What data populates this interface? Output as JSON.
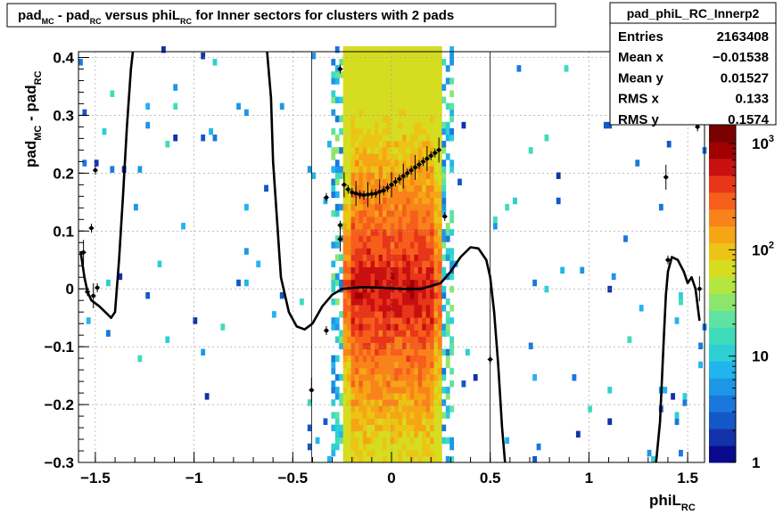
{
  "chart_data": {
    "type": "heatmap",
    "title": {
      "a": "pad",
      "a_sub": "MC",
      "b": " - pad",
      "b_sub": "RC",
      "c": " versus phiL",
      "c_sub": "RC",
      "d": " for Inner sectors for clusters with 2 pads"
    },
    "xlabel": {
      "main": "phiL",
      "sub": "RC"
    },
    "ylabel": {
      "a": "pad",
      "a_sub": "MC",
      "b": " - pad",
      "b_sub": "RC"
    },
    "xlim": [
      -1.5854,
      1.5854
    ],
    "ylim": [
      -0.3,
      0.41
    ],
    "x_ticks": [
      {
        "v": -1.5,
        "label": "−1.5"
      },
      {
        "v": -1,
        "label": "−1"
      },
      {
        "v": -0.5,
        "label": "−0.5"
      },
      {
        "v": 0,
        "label": "0"
      },
      {
        "v": 0.5,
        "label": "0.5"
      },
      {
        "v": 1,
        "label": "1"
      },
      {
        "v": 1.5,
        "label": "1.5"
      }
    ],
    "y_ticks": [
      {
        "v": -0.3,
        "label": "−0.3"
      },
      {
        "v": -0.2,
        "label": "−0.2"
      },
      {
        "v": -0.1,
        "label": "−0.1"
      },
      {
        "v": 0,
        "label": "0"
      },
      {
        "v": 0.1,
        "label": "0.1"
      },
      {
        "v": 0.2,
        "label": "0.2"
      },
      {
        "v": 0.3,
        "label": "0.3"
      },
      {
        "v": 0.4,
        "label": "0.4"
      }
    ],
    "grid": true,
    "stats": {
      "title": "pad_phiL_RC_Innerp2",
      "rows": [
        {
          "label": "Entries",
          "value": "2163408"
        },
        {
          "label": "Mean x",
          "value": "−0.01538"
        },
        {
          "label": "Mean y",
          "value": "0.01527"
        },
        {
          "label": "RMS x",
          "value": "0.133"
        },
        {
          "label": "RMS y",
          "value": "0.1574"
        }
      ]
    },
    "colorbar": {
      "scale": "log",
      "zlim": [
        1,
        1500
      ],
      "colors": [
        "#0a0a8c",
        "#1331a8",
        "#1457c6",
        "#1a78dc",
        "#1e96e6",
        "#22b4ec",
        "#2ecfd4",
        "#3edcbc",
        "#5ee3a0",
        "#8ce66e",
        "#b4e640",
        "#d6dc20",
        "#ecc415",
        "#f6a514",
        "#f9831a",
        "#f65e1c",
        "#e8361a",
        "#c81010",
        "#a00000",
        "#780000"
      ],
      "labels": [
        {
          "v": 1,
          "label": "1"
        },
        {
          "v": 10,
          "label": "10"
        },
        {
          "v": 100,
          "label": "10",
          "sup": "2"
        },
        {
          "v": 1000,
          "label": "10",
          "sup": "3"
        }
      ]
    },
    "series": [
      {
        "kind": "curve",
        "points": [
          [
            -1.575,
            0.065
          ],
          [
            -1.555,
            0.02
          ],
          [
            -1.54,
            -0.005
          ],
          [
            -1.52,
            -0.02
          ],
          [
            -1.5,
            -0.025
          ],
          [
            -1.48,
            -0.03
          ],
          [
            -1.45,
            -0.04
          ],
          [
            -1.42,
            -0.05
          ],
          [
            -1.4,
            -0.04
          ],
          [
            -1.38,
            0.05
          ],
          [
            -1.36,
            0.16
          ],
          [
            -1.34,
            0.28
          ],
          [
            -1.32,
            0.38
          ],
          [
            -1.31,
            0.42
          ],
          [
            -0.63,
            0.42
          ],
          [
            -0.61,
            0.33
          ],
          [
            -0.6,
            0.22
          ],
          [
            -0.58,
            0.12
          ],
          [
            -0.56,
            0.02
          ],
          [
            -0.52,
            -0.04
          ],
          [
            -0.48,
            -0.065
          ],
          [
            -0.44,
            -0.07
          ],
          [
            -0.4,
            -0.06
          ],
          [
            -0.35,
            -0.03
          ],
          [
            -0.3,
            -0.01
          ],
          [
            -0.25,
            0.0
          ],
          [
            -0.15,
            0.003
          ],
          [
            -0.05,
            0.002
          ],
          [
            0.05,
            0.0
          ],
          [
            0.15,
            0.0
          ],
          [
            0.25,
            0.01
          ],
          [
            0.3,
            0.03
          ],
          [
            0.35,
            0.055
          ],
          [
            0.4,
            0.072
          ],
          [
            0.44,
            0.07
          ],
          [
            0.48,
            0.05
          ],
          [
            0.5,
            0.02
          ],
          [
            0.52,
            -0.04
          ],
          [
            0.54,
            -0.13
          ],
          [
            0.56,
            -0.24
          ],
          [
            0.575,
            -0.3
          ],
          [
            1.34,
            -0.3
          ],
          [
            1.36,
            -0.23
          ],
          [
            1.38,
            -0.08
          ],
          [
            1.39,
            -0.01
          ],
          [
            1.4,
            0.03
          ],
          [
            1.42,
            0.055
          ],
          [
            1.45,
            0.05
          ],
          [
            1.48,
            0.03
          ],
          [
            1.5,
            0.01
          ],
          [
            1.52,
            0.02
          ],
          [
            1.54,
            0.0
          ],
          [
            1.56,
            -0.055
          ]
        ]
      },
      {
        "kind": "profile_points",
        "points": [
          [
            -1.56,
            0.063
          ],
          [
            -1.54,
            -0.005
          ],
          [
            -1.52,
            0.105
          ],
          [
            -1.51,
            -0.012
          ],
          [
            -1.5,
            0.205
          ],
          [
            -1.49,
            0.002
          ],
          [
            -0.405,
            -0.175
          ],
          [
            -0.33,
            -0.072
          ],
          [
            -0.33,
            0.158
          ],
          [
            -0.26,
            0.086
          ],
          [
            -0.26,
            0.38
          ],
          [
            -0.26,
            0.11
          ],
          [
            -0.24,
            0.18
          ],
          [
            -0.22,
            0.172
          ],
          [
            -0.2,
            0.167
          ],
          [
            -0.18,
            0.165
          ],
          [
            -0.16,
            0.163
          ],
          [
            -0.14,
            0.162
          ],
          [
            -0.12,
            0.163
          ],
          [
            -0.1,
            0.164
          ],
          [
            -0.08,
            0.165
          ],
          [
            -0.06,
            0.168
          ],
          [
            -0.04,
            0.17
          ],
          [
            -0.02,
            0.175
          ],
          [
            0.0,
            0.18
          ],
          [
            0.02,
            0.185
          ],
          [
            0.04,
            0.19
          ],
          [
            0.06,
            0.195
          ],
          [
            0.08,
            0.2
          ],
          [
            0.1,
            0.205
          ],
          [
            0.12,
            0.21
          ],
          [
            0.14,
            0.215
          ],
          [
            0.16,
            0.22
          ],
          [
            0.18,
            0.225
          ],
          [
            0.2,
            0.23
          ],
          [
            0.22,
            0.235
          ],
          [
            0.24,
            0.24
          ],
          [
            0.27,
            0.125
          ],
          [
            0.5,
            -0.122
          ],
          [
            1.39,
            0.193
          ],
          [
            1.4,
            0.05
          ],
          [
            1.55,
            0.28
          ],
          [
            1.56,
            0.0
          ]
        ]
      }
    ]
  }
}
